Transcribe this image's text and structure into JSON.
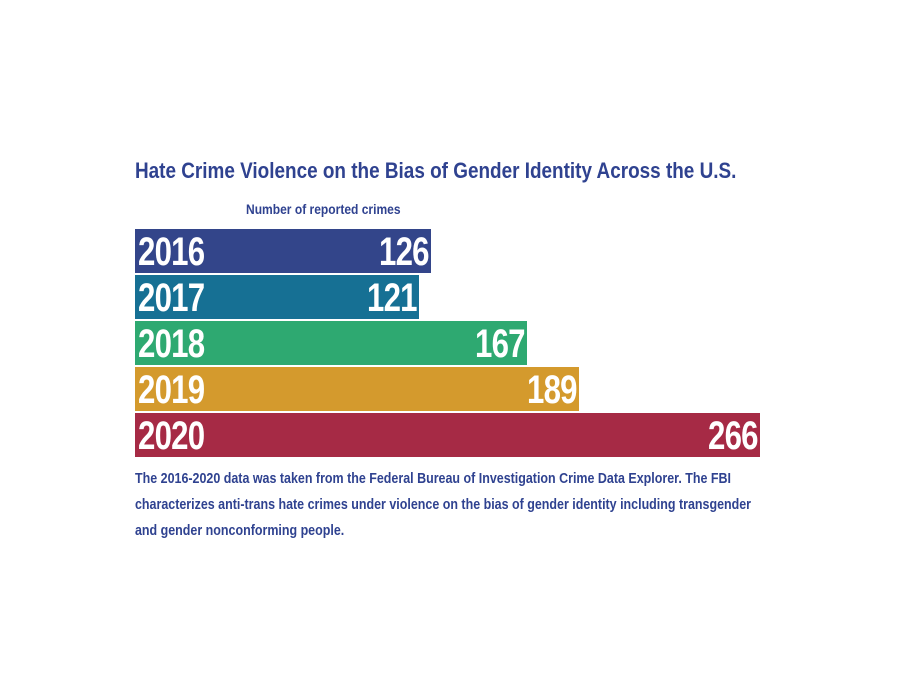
{
  "chart_data": {
    "type": "bar",
    "orientation": "horizontal",
    "title": "Hate Crime Violence on the Bias of Gender Identity Across the U.S.",
    "subtitle": "Number of reported crimes",
    "xlabel": "Number of reported crimes",
    "ylabel": "",
    "categories": [
      "2016",
      "2017",
      "2018",
      "2019",
      "2020"
    ],
    "values": [
      126,
      121,
      167,
      189,
      266
    ],
    "value_labels": [
      "126",
      "121",
      "167",
      "189",
      "266"
    ],
    "colors": [
      "#33458a",
      "#167094",
      "#2ea971",
      "#d49a2d",
      "#a62a45"
    ],
    "xlim": [
      0,
      266
    ],
    "grid": false,
    "legend": "none"
  },
  "footnote": "The 2016-2020 data was taken from the Federal Bureau of Investigation Crime Data Explorer. The FBI characterizes anti-trans hate crimes under violence on the bias of gender identity including transgender and gender nonconforming people."
}
